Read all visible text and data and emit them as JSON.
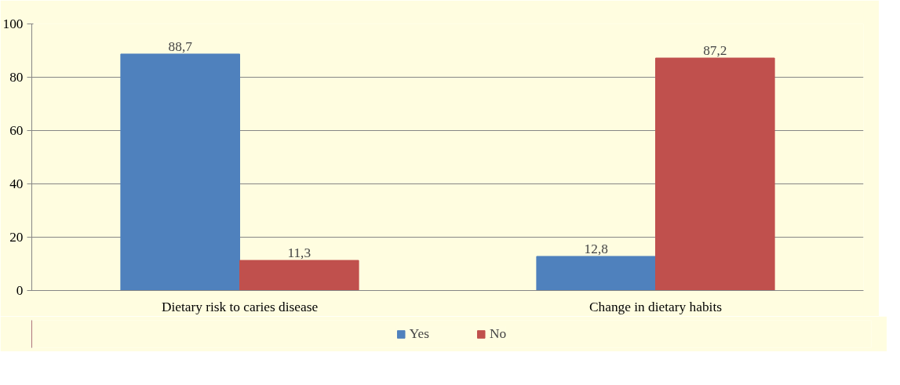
{
  "chart_data": {
    "type": "bar",
    "categories": [
      "Dietary risk to caries disease",
      "Change in dietary habits"
    ],
    "series": [
      {
        "name": "Yes",
        "color": "#4f81bd",
        "values": [
          88.7,
          12.8
        ],
        "value_labels": [
          "88,7",
          "12,8"
        ]
      },
      {
        "name": "No",
        "color": "#c0504d",
        "values": [
          11.3,
          87.2
        ],
        "value_labels": [
          "11,3",
          "87,2"
        ]
      }
    ],
    "ylim": [
      0,
      100
    ],
    "yticks": [
      0,
      20,
      40,
      60,
      80,
      100
    ],
    "grid": "y",
    "legend": "bottom"
  }
}
